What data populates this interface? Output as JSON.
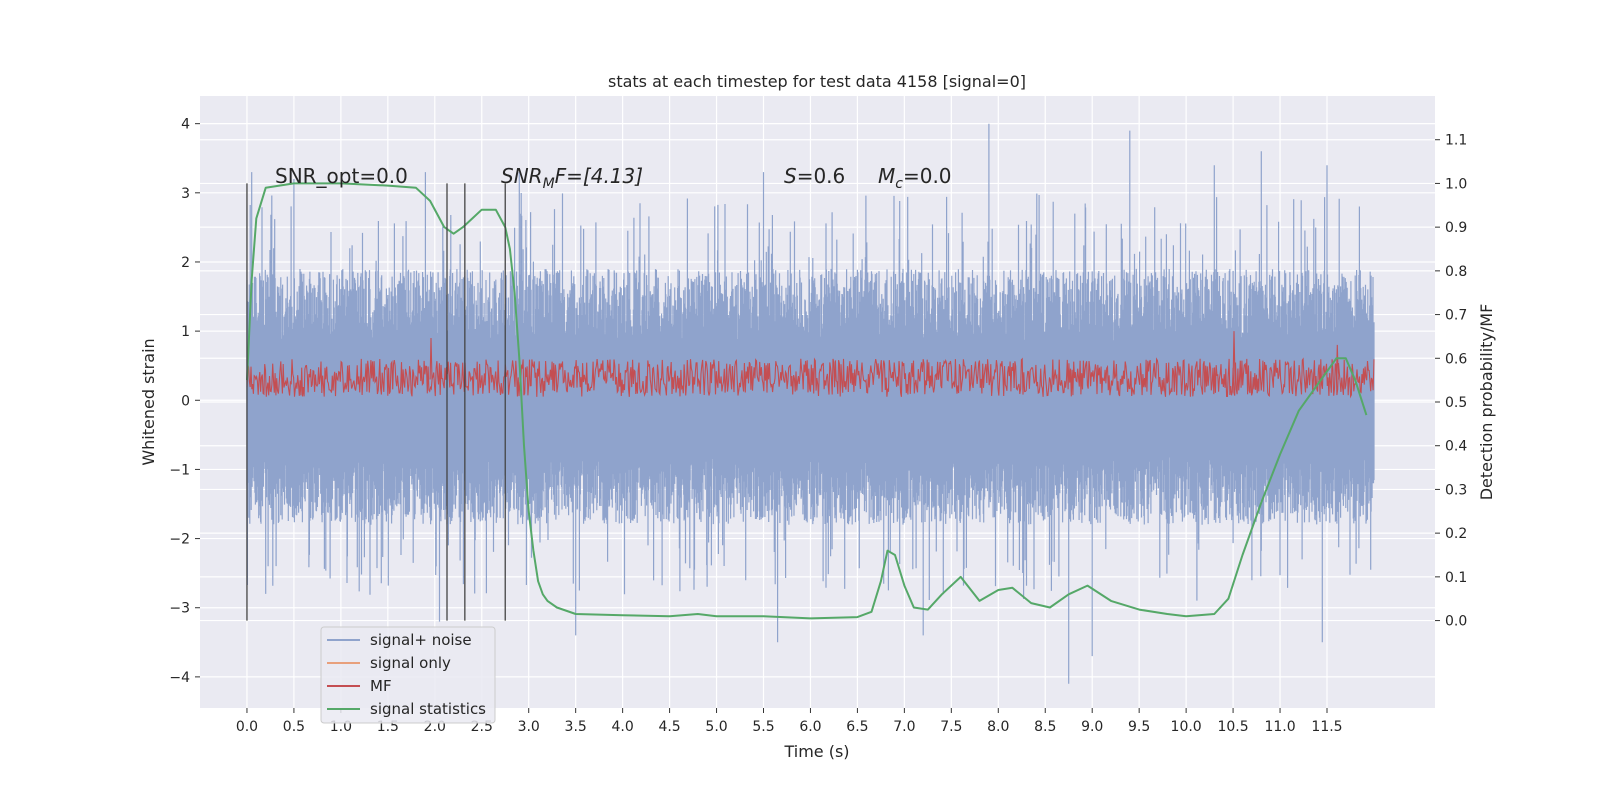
{
  "chart_data": {
    "type": "line",
    "title": "stats at each timestep for test data 4158 [signal=0]",
    "xlabel": "Time (s)",
    "ylabel": "Whitened strain",
    "ylabel_right": "Detection probability/MF",
    "xlim": [
      -0.5,
      12.65
    ],
    "ylim": [
      -4.45,
      4.4
    ],
    "ylim_right": [
      -0.2,
      1.2
    ],
    "x_ticks": [
      "0.0",
      "0.5",
      "1.0",
      "1.5",
      "2.0",
      "2.5",
      "3.0",
      "3.5",
      "4.0",
      "4.5",
      "5.0",
      "5.5",
      "6.0",
      "6.5",
      "7.0",
      "7.5",
      "8.0",
      "8.5",
      "9.0",
      "9.5",
      "10.0",
      "10.5",
      "11.0",
      "11.5"
    ],
    "y_ticks": [
      4,
      3,
      2,
      1,
      0,
      -1,
      -2,
      -3,
      -4
    ],
    "y_tick_labels": [
      "4",
      "3",
      "2",
      "1",
      "0",
      "−1",
      "−2",
      "−3",
      "−4"
    ],
    "y_ticks_right": [
      "0.0",
      "0.1",
      "0.2",
      "0.3",
      "0.4",
      "0.5",
      "0.6",
      "0.7",
      "0.8",
      "0.9",
      "1.0",
      "1.1"
    ],
    "grid": true,
    "legend_position": "lower-left",
    "annotations": {
      "snr_opt": "SNR_opt=0.0",
      "snr_mf_main": "SNR",
      "snr_mf_sub": "M",
      "snr_mf_rest": "F=[4.13]",
      "s_var": "S",
      "s_val": "=0.6",
      "mc_var": "M",
      "mc_sub": "c",
      "mc_val": "=0.0"
    },
    "vertical_lines_x": [
      0.0,
      2.13,
      2.32,
      2.75
    ],
    "series": [
      {
        "name": "signal+ noise",
        "color": "#8fa3cc",
        "axis": "left",
        "duration": 12.0,
        "envelope_upper": 1.9,
        "envelope_lower": -1.8,
        "peaks": [
          [
            0.05,
            3.3
          ],
          [
            0.5,
            3.2
          ],
          [
            1.9,
            3.3
          ],
          [
            2.9,
            3.3
          ],
          [
            5.5,
            3.3
          ],
          [
            7.9,
            4.0
          ],
          [
            9.4,
            3.9
          ],
          [
            10.3,
            3.4
          ],
          [
            10.8,
            3.6
          ],
          [
            11.5,
            3.4
          ]
        ],
        "troughs": [
          [
            0.2,
            -2.8
          ],
          [
            2.05,
            -3.2
          ],
          [
            3.5,
            -3.4
          ],
          [
            5.65,
            -3.5
          ],
          [
            7.2,
            -3.4
          ],
          [
            8.75,
            -4.1
          ],
          [
            9.0,
            -3.7
          ],
          [
            11.45,
            -3.5
          ]
        ]
      },
      {
        "name": "signal only",
        "color": "#e8a07c",
        "axis": "left",
        "values": []
      },
      {
        "name": "MF",
        "color": "#c44e52",
        "axis": "left",
        "duration": 12.0,
        "baseline": 0.3,
        "band": [
          0.05,
          0.6
        ],
        "peaks": [
          [
            1.95,
            0.9
          ],
          [
            10.5,
            1.0
          ],
          [
            11.6,
            0.8
          ]
        ]
      },
      {
        "name": "signal statistics",
        "color": "#55a868",
        "axis": "right",
        "x": [
          0.0,
          0.05,
          0.1,
          0.2,
          0.5,
          1.0,
          1.5,
          1.8,
          1.95,
          2.1,
          2.2,
          2.3,
          2.4,
          2.5,
          2.65,
          2.75,
          2.8,
          2.85,
          2.9,
          2.95,
          3.0,
          3.05,
          3.1,
          3.15,
          3.2,
          3.3,
          3.5,
          4.0,
          4.5,
          4.8,
          5.0,
          5.5,
          6.0,
          6.5,
          6.65,
          6.75,
          6.82,
          6.9,
          7.0,
          7.1,
          7.25,
          7.4,
          7.6,
          7.8,
          8.0,
          8.15,
          8.35,
          8.55,
          8.75,
          8.95,
          9.2,
          9.5,
          9.8,
          10.0,
          10.3,
          10.45,
          10.6,
          10.8,
          11.0,
          11.2,
          11.4,
          11.6,
          11.7,
          11.8,
          11.92
        ],
        "values": [
          0.55,
          0.78,
          0.92,
          0.99,
          1.0,
          1.0,
          0.995,
          0.99,
          0.96,
          0.9,
          0.885,
          0.9,
          0.92,
          0.94,
          0.94,
          0.9,
          0.85,
          0.75,
          0.6,
          0.4,
          0.25,
          0.16,
          0.09,
          0.06,
          0.045,
          0.03,
          0.015,
          0.012,
          0.01,
          0.015,
          0.01,
          0.01,
          0.005,
          0.008,
          0.02,
          0.09,
          0.16,
          0.15,
          0.08,
          0.03,
          0.025,
          0.06,
          0.1,
          0.045,
          0.07,
          0.075,
          0.04,
          0.03,
          0.06,
          0.08,
          0.045,
          0.025,
          0.015,
          0.01,
          0.015,
          0.05,
          0.15,
          0.27,
          0.38,
          0.48,
          0.54,
          0.6,
          0.6,
          0.55,
          0.47
        ]
      }
    ]
  }
}
